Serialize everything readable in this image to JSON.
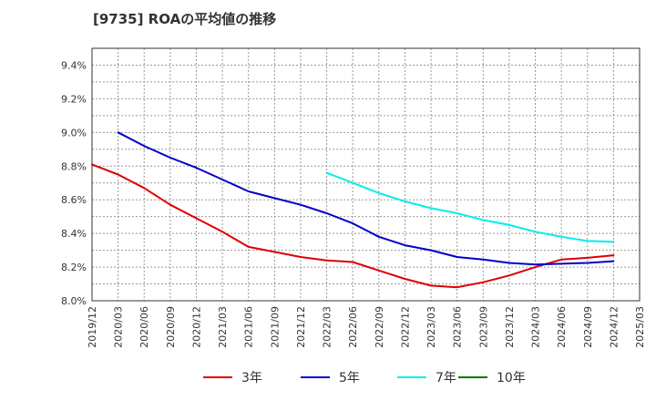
{
  "chart_data": {
    "type": "line",
    "title": "[9735]  ROAの平均値の推移",
    "xlabel": "",
    "ylabel": "",
    "x": [
      "2019/12",
      "2020/03",
      "2020/06",
      "2020/09",
      "2020/12",
      "2021/03",
      "2021/06",
      "2021/09",
      "2021/12",
      "2022/03",
      "2022/06",
      "2022/09",
      "2022/12",
      "2023/03",
      "2023/06",
      "2023/09",
      "2023/12",
      "2024/03",
      "2024/06",
      "2024/09",
      "2024/12",
      "2025/03"
    ],
    "ylim": [
      8.0,
      9.5
    ],
    "yticks": [
      8.0,
      8.2,
      8.4,
      8.6,
      8.8,
      9.0,
      9.2,
      9.4
    ],
    "ytick_labels": [
      "8.0%",
      "8.2%",
      "8.4%",
      "8.6%",
      "8.8%",
      "9.0%",
      "9.2%",
      "9.4%"
    ],
    "grid": true,
    "legend_position": "bottom",
    "series": [
      {
        "name": "3年",
        "color": "#dd0000",
        "values": [
          8.81,
          8.75,
          8.67,
          8.57,
          8.49,
          8.41,
          8.32,
          8.29,
          8.26,
          8.24,
          8.23,
          8.18,
          8.13,
          8.09,
          8.08,
          8.11,
          8.15,
          8.2,
          8.245,
          8.255,
          8.27,
          null
        ]
      },
      {
        "name": "5年",
        "color": "#0000cc",
        "values": [
          null,
          9.0,
          8.92,
          8.85,
          8.79,
          8.72,
          8.65,
          8.61,
          8.57,
          8.52,
          8.46,
          8.38,
          8.33,
          8.3,
          8.26,
          8.245,
          8.225,
          8.215,
          8.22,
          8.225,
          8.235,
          null
        ]
      },
      {
        "name": "7年",
        "color": "#00eeee",
        "values": [
          null,
          null,
          null,
          null,
          null,
          null,
          null,
          null,
          null,
          8.76,
          8.7,
          8.64,
          8.59,
          8.55,
          8.52,
          8.48,
          8.45,
          8.41,
          8.38,
          8.355,
          8.35,
          null
        ]
      },
      {
        "name": "10年",
        "color": "#007700",
        "values": [
          null,
          null,
          null,
          null,
          null,
          null,
          null,
          null,
          null,
          null,
          null,
          null,
          null,
          null,
          null,
          null,
          null,
          null,
          null,
          null,
          null,
          null
        ]
      }
    ]
  }
}
